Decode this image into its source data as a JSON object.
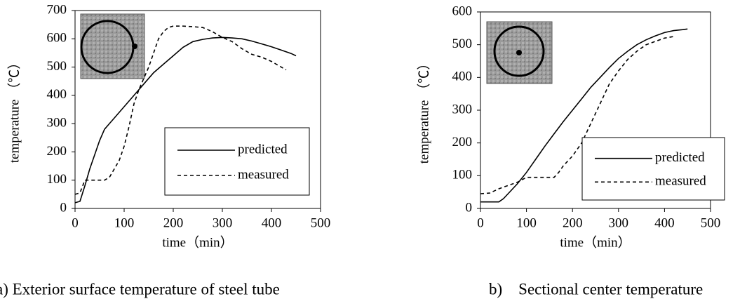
{
  "chart_data": [
    {
      "type": "line",
      "caption": "a) Exterior surface temperature of steel tube",
      "xlabel": "time（min）",
      "ylabel": "temperature （℃）",
      "xlim": [
        0,
        500
      ],
      "xticks": [
        0,
        100,
        200,
        300,
        400,
        500
      ],
      "ylim": [
        0,
        700
      ],
      "yticks": [
        0,
        100,
        200,
        300,
        400,
        500,
        600,
        700
      ],
      "legend": "lower right",
      "series": [
        {
          "name": "predicted",
          "color": "#000000",
          "style": "solid",
          "x": [
            0,
            10,
            20,
            30,
            40,
            50,
            60,
            70,
            80,
            100,
            120,
            140,
            160,
            180,
            200,
            220,
            240,
            260,
            280,
            300,
            320,
            340,
            360,
            380,
            400,
            420,
            440,
            450
          ],
          "values": [
            20,
            25,
            80,
            140,
            190,
            240,
            280,
            300,
            320,
            360,
            400,
            440,
            480,
            510,
            540,
            570,
            590,
            598,
            603,
            605,
            603,
            600,
            592,
            582,
            572,
            560,
            548,
            540
          ]
        },
        {
          "name": "measured",
          "color": "#000000",
          "style": "dashed",
          "x": [
            0,
            10,
            20,
            40,
            60,
            70,
            80,
            90,
            100,
            110,
            120,
            130,
            140,
            150,
            160,
            170,
            180,
            190,
            200,
            220,
            240,
            260,
            280,
            300,
            320,
            340,
            360,
            380,
            400,
            420,
            430
          ],
          "values": [
            50,
            55,
            100,
            100,
            100,
            110,
            140,
            170,
            220,
            290,
            370,
            420,
            460,
            500,
            550,
            600,
            625,
            640,
            645,
            645,
            643,
            640,
            625,
            605,
            590,
            565,
            545,
            535,
            520,
            500,
            490
          ]
        }
      ]
    },
    {
      "type": "line",
      "caption": "b)    Sectional center temperature",
      "xlabel": "time（min）",
      "ylabel": "temperature （℃）",
      "xlim": [
        0,
        500
      ],
      "xticks": [
        0,
        100,
        200,
        300,
        400,
        500
      ],
      "ylim": [
        0,
        600
      ],
      "yticks": [
        0,
        100,
        200,
        300,
        400,
        500,
        600
      ],
      "legend": "lower right",
      "series": [
        {
          "name": "predicted",
          "color": "#000000",
          "style": "solid",
          "x": [
            0,
            40,
            50,
            60,
            80,
            100,
            120,
            140,
            160,
            180,
            200,
            220,
            240,
            260,
            280,
            300,
            320,
            340,
            360,
            380,
            400,
            420,
            440,
            450
          ],
          "values": [
            20,
            20,
            30,
            45,
            75,
            110,
            150,
            190,
            228,
            265,
            300,
            335,
            370,
            400,
            430,
            458,
            480,
            500,
            515,
            527,
            537,
            543,
            546,
            548
          ]
        },
        {
          "name": "measured",
          "color": "#000000",
          "style": "dashed",
          "x": [
            0,
            20,
            40,
            60,
            80,
            100,
            120,
            140,
            160,
            170,
            180,
            200,
            220,
            240,
            260,
            280,
            300,
            320,
            340,
            360,
            380,
            400,
            420
          ],
          "values": [
            45,
            47,
            60,
            70,
            80,
            95,
            95,
            95,
            95,
            110,
            130,
            160,
            200,
            260,
            320,
            380,
            420,
            455,
            480,
            500,
            510,
            520,
            525
          ]
        }
      ]
    }
  ]
}
